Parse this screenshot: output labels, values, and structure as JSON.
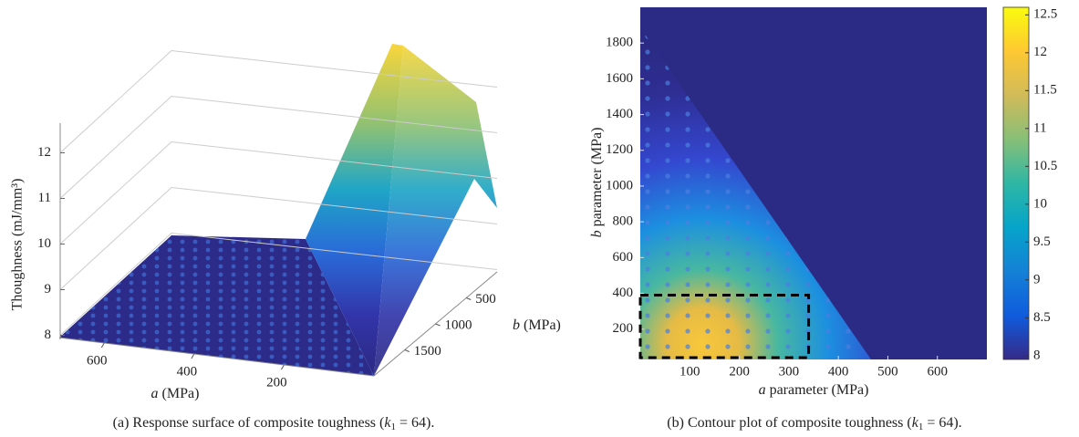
{
  "chart_data": [
    {
      "type": "surface",
      "x_label": [
        "a",
        " (MPa)"
      ],
      "y_label": [
        "b",
        " (MPa)"
      ],
      "z_label": "Thoughness (mJ/mm³)",
      "xlim": [
        700,
        0
      ],
      "xticks": [
        600,
        400,
        200
      ],
      "ylim": [
        0,
        2000
      ],
      "yticks": [
        500,
        1000,
        1500
      ],
      "zlim": [
        7.95,
        12.65
      ],
      "zticks": [
        8,
        9,
        10,
        11,
        12
      ],
      "grid": true,
      "caption": [
        "(a) Response surface of composite toughness (",
        "k",
        "1",
        " = 64)."
      ]
    },
    {
      "type": "contour",
      "x_label": [
        "a",
        " parameter (MPa)"
      ],
      "y_label": [
        "b",
        " parameter (MPa)"
      ],
      "xlim": [
        0,
        700
      ],
      "xticks": [
        100,
        200,
        300,
        400,
        500,
        600
      ],
      "ylim": [
        30,
        2000
      ],
      "yticks": [
        200,
        400,
        600,
        800,
        1000,
        1200,
        1400,
        1600,
        1800
      ],
      "clim": [
        7.95,
        12.6
      ],
      "cticks": [
        8,
        8.5,
        9,
        9.5,
        10,
        10.5,
        11,
        11.5,
        12,
        12.5
      ],
      "colormap": [
        "#352a87",
        "#0f5cdd",
        "#1481d6",
        "#06a4ca",
        "#2eb7a4",
        "#87bf77",
        "#d1bb59",
        "#fec832",
        "#f9fb0e"
      ],
      "highlight_box": {
        "x": [
          0,
          340
        ],
        "y": [
          40,
          390
        ]
      },
      "caption": [
        "(b) Contour plot of composite toughness (",
        "k",
        "1",
        " = 64)."
      ]
    }
  ]
}
